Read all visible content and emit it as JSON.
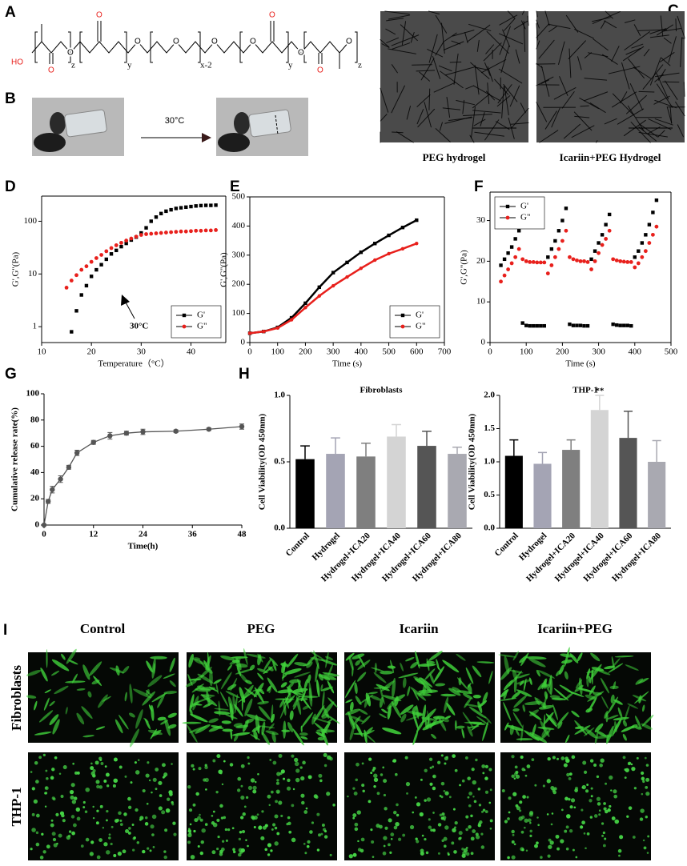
{
  "panel_labels": [
    "A",
    "B",
    "C",
    "D",
    "E",
    "F",
    "G",
    "H",
    "I"
  ],
  "structure": {
    "atoms": [
      "HO",
      "O",
      "O",
      "O",
      "O",
      "O",
      "O",
      "O",
      "O",
      "O",
      "O",
      "O"
    ],
    "subscripts": [
      "z",
      "y",
      "x-2",
      "y",
      "z"
    ]
  },
  "panel_b": {
    "arrow_label": "30°C"
  },
  "panel_c": {
    "captions": [
      "PEG hydrogel",
      "Icariin+PEG Hydrogel"
    ]
  },
  "panel_i": {
    "columns": [
      "Control",
      "PEG",
      "Icariin",
      "Icariin+PEG"
    ],
    "rows": [
      "Fibroblasts",
      "THP-1"
    ]
  },
  "chart_data": [
    {
      "type": "scatter",
      "xlabel": "Temperature（°C）",
      "ylabel": "G',G\"(Pa)",
      "x": [
        15,
        16,
        17,
        18,
        19,
        20,
        21,
        22,
        23,
        24,
        25,
        26,
        27,
        28,
        29,
        30,
        31,
        32,
        33,
        34,
        35,
        36,
        37,
        38,
        39,
        40,
        41,
        42,
        43,
        44,
        45
      ],
      "series": [
        {
          "name": "G'",
          "color": "#000000",
          "marker": "square",
          "values": [
            null,
            0.8,
            2,
            4,
            6,
            9,
            12,
            15,
            19,
            24,
            28,
            33,
            38,
            44,
            50,
            60,
            75,
            100,
            120,
            140,
            155,
            165,
            175,
            180,
            185,
            190,
            195,
            198,
            200,
            200,
            202
          ]
        },
        {
          "name": "G\"",
          "color": "#e8201c",
          "marker": "circle",
          "values": [
            5.5,
            7.5,
            9.5,
            12,
            14,
            17,
            20,
            23,
            27,
            31,
            35,
            39,
            43,
            47,
            51,
            55,
            57,
            58,
            59,
            60,
            61,
            62,
            63,
            64,
            64,
            65,
            66,
            66,
            67,
            67,
            68
          ]
        }
      ],
      "xlim": [
        10,
        47
      ],
      "xticks": [
        10,
        20,
        30,
        40
      ],
      "ylim": [
        0.5,
        300
      ],
      "yticks": [
        1,
        10,
        100
      ],
      "ylog": true,
      "legend": "lower right",
      "annotation": "30°C"
    },
    {
      "type": "line",
      "xlabel": "Time (s)",
      "ylabel": "G',G\"(Pa)",
      "x": [
        0,
        50,
        100,
        150,
        200,
        250,
        300,
        350,
        400,
        450,
        500,
        550,
        600
      ],
      "series": [
        {
          "name": "G'",
          "color": "#000000",
          "marker": "square",
          "values": [
            32,
            38,
            52,
            85,
            135,
            190,
            240,
            275,
            310,
            340,
            368,
            395,
            420
          ]
        },
        {
          "name": "G\"",
          "color": "#e8201c",
          "marker": "circle",
          "values": [
            32,
            38,
            50,
            78,
            120,
            160,
            195,
            225,
            255,
            283,
            305,
            322,
            340
          ]
        }
      ],
      "xlim": [
        0,
        700
      ],
      "xticks": [
        0,
        100,
        200,
        300,
        400,
        500,
        600,
        700
      ],
      "ylim": [
        0,
        500
      ],
      "yticks": [
        0,
        100,
        200,
        300,
        400,
        500
      ],
      "legend": "lower right"
    },
    {
      "type": "scatter",
      "xlabel": "Time (s)",
      "ylabel": "G',G\"(Pa)",
      "x": [
        30,
        40,
        50,
        60,
        70,
        80,
        90,
        100,
        110,
        120,
        130,
        140,
        150,
        160,
        170,
        180,
        190,
        200,
        210,
        220,
        230,
        240,
        250,
        260,
        270,
        280,
        290,
        300,
        310,
        320,
        330,
        340,
        350,
        360,
        370,
        380,
        390,
        400,
        410,
        420,
        430,
        440,
        450,
        460
      ],
      "series": [
        {
          "name": "G'",
          "color": "#000000",
          "marker": "square",
          "values": [
            19,
            20.5,
            22,
            23.5,
            25.5,
            27.5,
            4.8,
            4.2,
            4.1,
            4.1,
            4.1,
            4.1,
            4.1,
            21,
            23,
            25,
            27.5,
            30,
            33,
            4.5,
            4.2,
            4.2,
            4.2,
            4.1,
            4.1,
            20.5,
            22.5,
            24.5,
            26.5,
            29,
            31.5,
            4.5,
            4.3,
            4.2,
            4.2,
            4.2,
            4.1,
            21,
            22.5,
            24.5,
            26.5,
            29,
            32,
            35
          ]
        },
        {
          "name": "G\"",
          "color": "#e8201c",
          "marker": "circle",
          "values": [
            15,
            16.5,
            18,
            19.5,
            21,
            23,
            20.5,
            20,
            19.8,
            19.8,
            19.7,
            19.7,
            19.7,
            17,
            19,
            21,
            23,
            25,
            27.5,
            21,
            20.5,
            20.2,
            20,
            20,
            19.8,
            18,
            20,
            22,
            24,
            25.5,
            27.5,
            20.5,
            20.2,
            20,
            19.9,
            19.8,
            19.8,
            18.5,
            19.5,
            21,
            22.5,
            24.5,
            26.5,
            28.5
          ]
        }
      ],
      "xlim": [
        0,
        500
      ],
      "xticks": [
        0,
        100,
        200,
        300,
        400,
        500
      ],
      "ylim": [
        0,
        37
      ],
      "yticks": [
        0,
        10,
        20,
        30
      ],
      "legend": "upper left"
    },
    {
      "type": "line",
      "xlabel": "Time(h)",
      "ylabel": "Cumulative release rate(%)",
      "color": "#555555",
      "x": [
        0,
        1,
        2,
        4,
        6,
        8,
        12,
        16,
        20,
        24,
        32,
        40,
        48
      ],
      "values": [
        0,
        18,
        27,
        35,
        44,
        55,
        63,
        68,
        70,
        71,
        71.5,
        73,
        75
      ],
      "errors": [
        0,
        1.5,
        2.5,
        2.5,
        1.5,
        2,
        1.5,
        2.5,
        1.5,
        2,
        1,
        1,
        2
      ],
      "xlim": [
        0,
        48
      ],
      "xticks": [
        0,
        12,
        24,
        36,
        48
      ],
      "ylim": [
        0,
        100
      ],
      "yticks": [
        0,
        20,
        40,
        60,
        80,
        100
      ]
    },
    {
      "type": "bar",
      "title": "Fibroblasts",
      "ylabel": "Cell Viability(OD 450nm)",
      "categories": [
        "Control",
        "Hydrogel",
        "Hydrogel+ICA20",
        "Hydrogel+ICA40",
        "Hydrogel+ICA60",
        "Hydrogel+ICA80"
      ],
      "values": [
        0.52,
        0.56,
        0.54,
        0.69,
        0.62,
        0.56
      ],
      "errors": [
        0.1,
        0.12,
        0.1,
        0.09,
        0.11,
        0.05
      ],
      "colors": [
        "#000000",
        "#a4a4b4",
        "#7f7f7f",
        "#d4d4d4",
        "#555555",
        "#a9a9b1"
      ],
      "ylim": [
        0,
        1
      ],
      "yticks": [
        {
          "value": 0,
          "label": "0.0"
        },
        0.5,
        {
          "value": 1,
          "label": "1.0"
        }
      ]
    },
    {
      "type": "bar",
      "title": "THP-1",
      "ylabel": "Cell Viability(OD 450nm)",
      "categories": [
        "Control",
        "Hydrogel",
        "Hydrogel+ICA20",
        "Hydrogel+ICA40",
        "Hydrogel+ICA60",
        "Hydrogel+ICA80"
      ],
      "values": [
        1.09,
        0.97,
        1.18,
        1.78,
        1.36,
        1.0
      ],
      "errors": [
        0.24,
        0.17,
        0.15,
        0.22,
        0.4,
        0.32
      ],
      "colors": [
        "#000000",
        "#a4a4b4",
        "#7f7f7f",
        "#d4d4d4",
        "#555555",
        "#a9a9b1"
      ],
      "ylim": [
        0,
        2
      ],
      "yticks": [
        {
          "value": 0,
          "label": "0.0"
        },
        0.5,
        {
          "value": 1,
          "label": "1.0"
        },
        1.5,
        {
          "value": 2,
          "label": "2.0"
        }
      ],
      "annotation": "**"
    }
  ]
}
